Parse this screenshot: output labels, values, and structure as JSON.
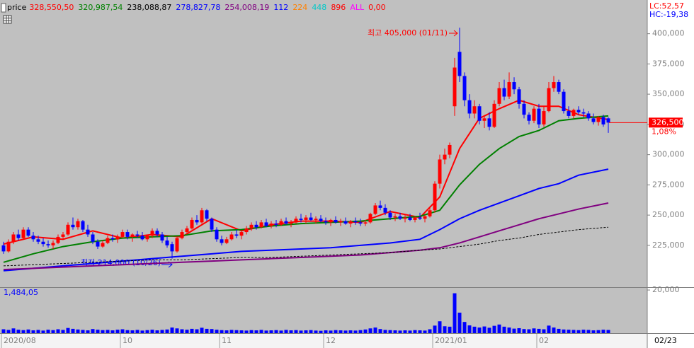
{
  "chart_data": {
    "type": "candlestick",
    "panel_title": "price",
    "legend": [
      {
        "label": "328,550,50",
        "color": "#ff0000"
      },
      {
        "label": "320,987,54",
        "color": "#008000"
      },
      {
        "label": "238,088,87",
        "color": "#000000"
      },
      {
        "label": "278,827,78",
        "color": "#0000ff"
      },
      {
        "label": "254,008,19",
        "color": "#800080"
      },
      {
        "label": "112",
        "color": "#0000ff"
      },
      {
        "label": "224",
        "color": "#ff8000"
      },
      {
        "label": "448",
        "color": "#00c8c8"
      },
      {
        "label": "896",
        "color": "#ff0000"
      },
      {
        "label": "ALL",
        "color": "#ff00ff"
      },
      {
        "label": "0,00",
        "color": "#ff0000"
      }
    ],
    "lc_label": "LC:52,57",
    "hc_label": "HC:-19,38",
    "current_price_label": "326,500",
    "change_label": "1,08%",
    "high_annotation": "최고 405,000 (01/11)",
    "low_annotation": "최저 214,000 (10/26)",
    "volume_label": "1,484,05",
    "last_date": "02/23",
    "up_color": "#ff0000",
    "down_color": "#0000ff",
    "volume_color": "#0000ff",
    "ylim": [
      191000,
      415000
    ],
    "yticks": [
      {
        "value": 225000,
        "label": "225,000"
      },
      {
        "value": 250000,
        "label": "250,000"
      },
      {
        "value": 275000,
        "label": "275,000"
      },
      {
        "value": 300000,
        "label": "300,000"
      },
      {
        "value": 325000,
        "label": "325,000"
      },
      {
        "value": 350000,
        "label": "350,000"
      },
      {
        "value": 375000,
        "label": "375,000"
      },
      {
        "value": 400000,
        "label": "400,000"
      }
    ],
    "volume_ylim": [
      0,
      21000
    ],
    "volume_yticks": [
      {
        "value": 20000,
        "label": "20,000"
      }
    ],
    "categories": [
      "2020/08",
      null,
      null,
      null,
      null,
      null,
      null,
      null,
      null,
      null,
      null,
      null,
      null,
      null,
      null,
      null,
      null,
      null,
      null,
      null,
      null,
      null,
      null,
      null,
      "10",
      null,
      null,
      null,
      null,
      null,
      null,
      null,
      null,
      null,
      null,
      null,
      null,
      null,
      null,
      null,
      null,
      null,
      null,
      null,
      "11",
      null,
      null,
      null,
      null,
      null,
      null,
      null,
      null,
      null,
      null,
      null,
      null,
      null,
      null,
      null,
      null,
      null,
      null,
      null,
      null,
      "12",
      null,
      null,
      null,
      null,
      null,
      null,
      null,
      null,
      null,
      null,
      null,
      null,
      null,
      null,
      null,
      null,
      null,
      null,
      null,
      null,
      null,
      "2021/01",
      null,
      null,
      null,
      null,
      null,
      null,
      null,
      null,
      null,
      null,
      null,
      null,
      null,
      null,
      null,
      null,
      null,
      null,
      null,
      null,
      "02",
      null,
      null,
      null,
      null,
      null,
      null,
      null,
      null,
      null,
      null,
      null,
      null,
      null,
      null
    ],
    "candles": [
      [
        225000,
        228000,
        218000,
        220000
      ],
      [
        220000,
        230000,
        219000,
        228000
      ],
      [
        228000,
        236000,
        226000,
        234000
      ],
      [
        234000,
        238000,
        229000,
        231000
      ],
      [
        231000,
        240000,
        230000,
        238000
      ],
      [
        238000,
        240000,
        232000,
        233000
      ],
      [
        233000,
        236000,
        228000,
        230000
      ],
      [
        230000,
        233000,
        226000,
        228000
      ],
      [
        228000,
        231000,
        224000,
        226000
      ],
      [
        226000,
        229000,
        223000,
        225000
      ],
      [
        225000,
        229000,
        222000,
        227000
      ],
      [
        227000,
        234000,
        226000,
        232000
      ],
      [
        232000,
        236000,
        230000,
        234000
      ],
      [
        234000,
        244000,
        233000,
        242000
      ],
      [
        242000,
        248000,
        238000,
        240000
      ],
      [
        240000,
        247000,
        238000,
        245000
      ],
      [
        245000,
        246000,
        236000,
        238000
      ],
      [
        238000,
        242000,
        232000,
        234000
      ],
      [
        234000,
        236000,
        226000,
        228000
      ],
      [
        228000,
        230000,
        222000,
        224000
      ],
      [
        224000,
        229000,
        223000,
        227000
      ],
      [
        227000,
        233000,
        226000,
        231000
      ],
      [
        231000,
        234000,
        228000,
        230000
      ],
      [
        230000,
        234000,
        227000,
        232000
      ],
      [
        232000,
        238000,
        231000,
        236000
      ],
      [
        236000,
        238000,
        230000,
        232000
      ],
      [
        232000,
        235000,
        228000,
        234000
      ],
      [
        234000,
        237000,
        231000,
        233000
      ],
      [
        233000,
        236000,
        229000,
        230000
      ],
      [
        230000,
        234000,
        228000,
        233000
      ],
      [
        233000,
        239000,
        231000,
        237000
      ],
      [
        237000,
        239000,
        232000,
        234000
      ],
      [
        234000,
        236000,
        227000,
        229000
      ],
      [
        229000,
        232000,
        223000,
        225000
      ],
      [
        226000,
        228000,
        214000,
        220000
      ],
      [
        220000,
        232000,
        219000,
        231000
      ],
      [
        231000,
        238000,
        230000,
        236000
      ],
      [
        236000,
        241000,
        234000,
        239000
      ],
      [
        239000,
        248000,
        238000,
        246000
      ],
      [
        246000,
        250000,
        242000,
        244000
      ],
      [
        244000,
        256000,
        243000,
        254000
      ],
      [
        254000,
        255000,
        245000,
        247000
      ],
      [
        247000,
        248000,
        236000,
        238000
      ],
      [
        238000,
        240000,
        228000,
        230000
      ],
      [
        230000,
        233000,
        225000,
        227000
      ],
      [
        227000,
        232000,
        226000,
        230000
      ],
      [
        230000,
        236000,
        229000,
        234000
      ],
      [
        234000,
        238000,
        231000,
        233000
      ],
      [
        233000,
        237000,
        230000,
        236000
      ],
      [
        236000,
        241000,
        234000,
        239000
      ],
      [
        239000,
        244000,
        237000,
        242000
      ],
      [
        242000,
        245000,
        238000,
        240000
      ],
      [
        240000,
        246000,
        239000,
        244000
      ],
      [
        244000,
        247000,
        240000,
        241000
      ],
      [
        241000,
        245000,
        239000,
        243000
      ],
      [
        243000,
        246000,
        240000,
        242000
      ],
      [
        242000,
        247000,
        241000,
        245000
      ],
      [
        245000,
        248000,
        242000,
        243000
      ],
      [
        243000,
        246000,
        240000,
        244000
      ],
      [
        244000,
        249000,
        243000,
        247000
      ],
      [
        247000,
        251000,
        244000,
        246000
      ],
      [
        246000,
        250000,
        243000,
        248000
      ],
      [
        248000,
        252000,
        245000,
        246000
      ],
      [
        246000,
        249000,
        243000,
        247000
      ],
      [
        247000,
        250000,
        244000,
        245000
      ],
      [
        245000,
        248000,
        242000,
        244000
      ],
      [
        244000,
        247000,
        241000,
        246000
      ],
      [
        246000,
        249000,
        243000,
        244000
      ],
      [
        244000,
        247000,
        241000,
        245000
      ],
      [
        245000,
        248000,
        242000,
        243000
      ],
      [
        243000,
        246000,
        240000,
        245000
      ],
      [
        245000,
        248000,
        242000,
        244000
      ],
      [
        244000,
        247000,
        241000,
        243000
      ],
      [
        243000,
        246000,
        241000,
        244000
      ],
      [
        244000,
        252000,
        243000,
        251000
      ],
      [
        251000,
        260000,
        250000,
        258000
      ],
      [
        258000,
        262000,
        254000,
        256000
      ],
      [
        256000,
        259000,
        250000,
        252000
      ],
      [
        252000,
        254000,
        246000,
        248000
      ],
      [
        248000,
        251000,
        245000,
        249000
      ],
      [
        249000,
        252000,
        246000,
        247000
      ],
      [
        247000,
        250000,
        244000,
        248000
      ],
      [
        248000,
        251000,
        245000,
        246000
      ],
      [
        246000,
        249000,
        244000,
        248000
      ],
      [
        248000,
        252000,
        246000,
        247000
      ],
      [
        247000,
        250000,
        244000,
        249000
      ],
      [
        249000,
        256000,
        248000,
        254000
      ],
      [
        254000,
        278000,
        252000,
        276000
      ],
      [
        276000,
        300000,
        272000,
        296000
      ],
      [
        296000,
        305000,
        292000,
        300000
      ],
      [
        300000,
        310000,
        297000,
        308000
      ],
      [
        340000,
        380000,
        332000,
        372000
      ],
      [
        385000,
        405000,
        360000,
        365000
      ],
      [
        365000,
        368000,
        340000,
        345000
      ],
      [
        345000,
        350000,
        330000,
        334000
      ],
      [
        334000,
        345000,
        330000,
        340000
      ],
      [
        340000,
        342000,
        325000,
        328000
      ],
      [
        328000,
        332000,
        322000,
        330000
      ],
      [
        330000,
        335000,
        320000,
        323000
      ],
      [
        323000,
        345000,
        322000,
        342000
      ],
      [
        342000,
        360000,
        340000,
        355000
      ],
      [
        355000,
        362000,
        345000,
        348000
      ],
      [
        348000,
        368000,
        346000,
        360000
      ],
      [
        360000,
        364000,
        350000,
        354000
      ],
      [
        354000,
        356000,
        338000,
        342000
      ],
      [
        342000,
        345000,
        330000,
        333000
      ],
      [
        333000,
        335000,
        325000,
        328000
      ],
      [
        328000,
        340000,
        326000,
        338000
      ],
      [
        338000,
        342000,
        322000,
        325000
      ],
      [
        325000,
        340000,
        323000,
        336000
      ],
      [
        336000,
        360000,
        335000,
        355000
      ],
      [
        355000,
        365000,
        352000,
        360000
      ],
      [
        360000,
        362000,
        350000,
        352000
      ],
      [
        352000,
        354000,
        334000,
        336000
      ],
      [
        336000,
        340000,
        330000,
        332000
      ],
      [
        332000,
        338000,
        330000,
        337000
      ],
      [
        337000,
        340000,
        333000,
        335000
      ],
      [
        335000,
        338000,
        331000,
        334000
      ],
      [
        334000,
        336000,
        328000,
        330000
      ],
      [
        330000,
        334000,
        325000,
        327000
      ],
      [
        327000,
        332000,
        324000,
        331000
      ],
      [
        331000,
        333000,
        323000,
        325000
      ],
      [
        330000,
        331000,
        318000,
        326500
      ]
    ],
    "volume": [
      1800,
      1500,
      2200,
      1600,
      1400,
      1700,
      1300,
      1500,
      1200,
      1600,
      1400,
      1800,
      1500,
      2400,
      2000,
      1700,
      1500,
      1300,
      1900,
      1600,
      1400,
      1500,
      1300,
      1600,
      1800,
      1400,
      1300,
      1500,
      1200,
      1400,
      1600,
      1300,
      1500,
      1700,
      2600,
      2200,
      1800,
      1600,
      2000,
      1800,
      2500,
      2000,
      1900,
      1600,
      1400,
      1300,
      1500,
      1400,
      1300,
      1200,
      1400,
      1300,
      1500,
      1200,
      1300,
      1400,
      1200,
      1500,
      1300,
      1400,
      1200,
      1300,
      1400,
      1200,
      1100,
      1300,
      1200,
      1400,
      1300,
      1200,
      1300,
      1200,
      1400,
      1700,
      2200,
      2600,
      1900,
      1500,
      1400,
      1300,
      1200,
      1300,
      1200,
      1400,
      1300,
      1200,
      1800,
      3500,
      5500,
      3200,
      3000,
      18500,
      9500,
      5200,
      3600,
      3000,
      2600,
      3100,
      2500,
      3400,
      4000,
      3000,
      2600,
      2100,
      2300,
      1900,
      1800,
      2200,
      2000,
      1800,
      3500,
      2600,
      2000,
      1700,
      1600,
      1500,
      1400,
      1600,
      1500,
      1300,
      1400,
      1600,
      1484.05
    ],
    "ma_lines": [
      {
        "color": "#ff0000",
        "dashed": false,
        "x": [
          0,
          6,
          12,
          18,
          24,
          30,
          36,
          42,
          48,
          54,
          60,
          66,
          72,
          78,
          84,
          88,
          92,
          96,
          100,
          104,
          108,
          112,
          116,
          122
        ],
        "values": [
          226000,
          232000,
          230000,
          237000,
          231000,
          234000,
          232000,
          247000,
          237000,
          242000,
          245000,
          245000,
          244000,
          253000,
          248000,
          265000,
          305000,
          330000,
          338000,
          345000,
          340000,
          340000,
          333000,
          329000
        ]
      },
      {
        "color": "#008000",
        "dashed": false,
        "x": [
          0,
          6,
          12,
          18,
          24,
          30,
          36,
          42,
          48,
          54,
          60,
          66,
          72,
          78,
          84,
          88,
          92,
          96,
          100,
          104,
          108,
          112,
          116,
          122
        ],
        "values": [
          211000,
          218000,
          224000,
          228000,
          231000,
          232000,
          233000,
          237000,
          238000,
          241000,
          243000,
          244000,
          245000,
          247000,
          249000,
          254000,
          275000,
          292000,
          305000,
          315000,
          320000,
          328000,
          330000,
          332000
        ]
      },
      {
        "color": "#0000ff",
        "dashed": false,
        "x": [
          0,
          6,
          12,
          18,
          24,
          30,
          36,
          42,
          48,
          54,
          60,
          66,
          72,
          78,
          84,
          88,
          92,
          96,
          100,
          104,
          108,
          112,
          116,
          122
        ],
        "values": [
          204000,
          206000,
          208000,
          210000,
          212000,
          214000,
          216000,
          218000,
          220000,
          221000,
          222000,
          223000,
          225000,
          227000,
          230000,
          238000,
          247000,
          254000,
          260000,
          266000,
          272000,
          276000,
          283000,
          288000
        ]
      },
      {
        "color": "#800080",
        "dashed": false,
        "x": [
          0,
          6,
          12,
          18,
          24,
          30,
          36,
          42,
          48,
          54,
          60,
          66,
          72,
          78,
          84,
          88,
          92,
          96,
          100,
          104,
          108,
          112,
          116,
          122
        ],
        "values": [
          205000,
          206000,
          207000,
          208000,
          209000,
          210000,
          211000,
          212000,
          213000,
          214000,
          215000,
          216000,
          217000,
          219000,
          221000,
          223000,
          227000,
          232000,
          237000,
          242000,
          247000,
          251000,
          255000,
          260000
        ]
      },
      {
        "color": "#000000",
        "dashed": true,
        "x": [
          0,
          6,
          12,
          18,
          24,
          30,
          36,
          42,
          48,
          54,
          60,
          66,
          72,
          78,
          84,
          88,
          92,
          96,
          100,
          104,
          108,
          112,
          116,
          122
        ],
        "values": [
          208000,
          209000,
          210000,
          211000,
          212000,
          213000,
          213000,
          214000,
          215000,
          215000,
          216000,
          217000,
          218000,
          219000,
          221000,
          222000,
          224000,
          226000,
          229000,
          231000,
          234000,
          236000,
          238000,
          240000
        ]
      }
    ]
  }
}
